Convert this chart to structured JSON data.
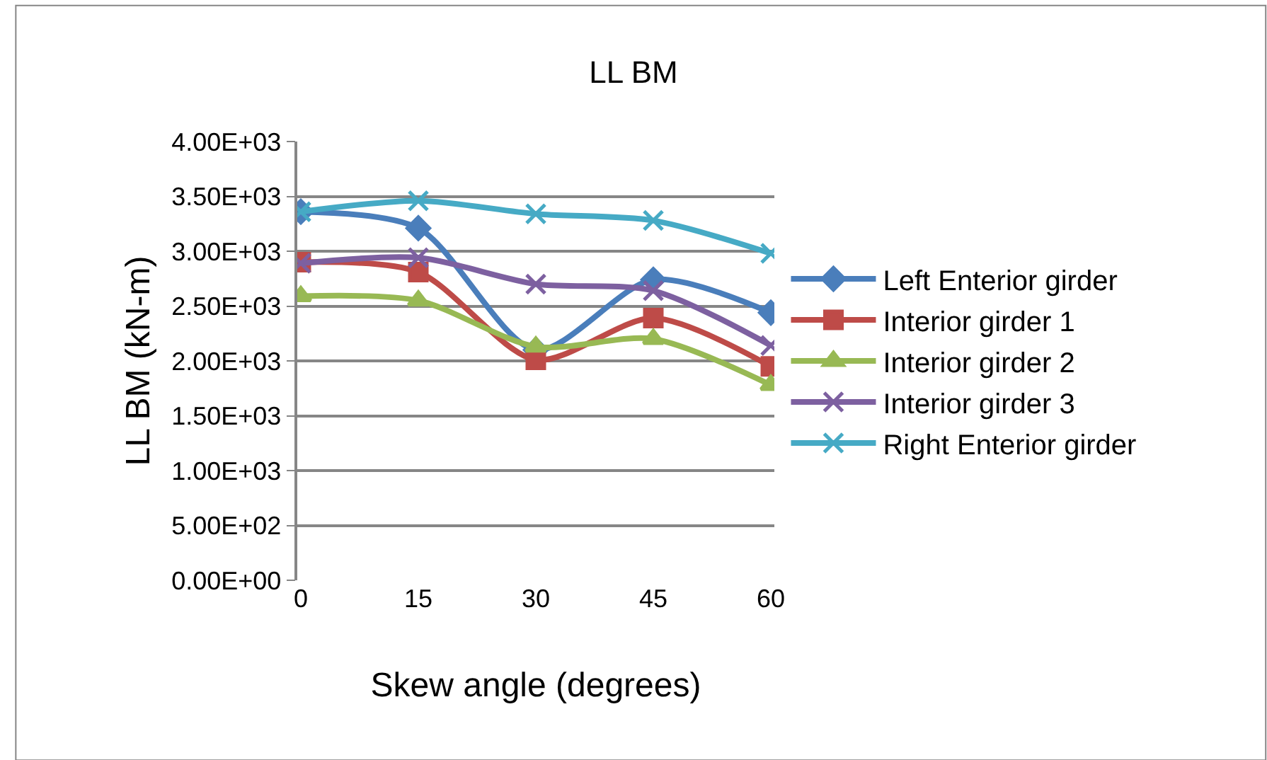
{
  "chart_data": {
    "type": "line",
    "title": "LL BM",
    "xlabel": "Skew angle (degrees)",
    "ylabel": "LL BM (kN-m)",
    "categories": [
      "0",
      "15",
      "30",
      "45",
      "60"
    ],
    "series": [
      {
        "name": "Left Enterior girder",
        "color": "#4a7ebb",
        "marker": "diamond",
        "values": [
          3360,
          3210,
          2100,
          2740,
          2440
        ]
      },
      {
        "name": "Interior girder 1",
        "color": "#be4b48",
        "marker": "square",
        "values": [
          2900,
          2810,
          2010,
          2390,
          1950
        ]
      },
      {
        "name": "Interior girder 2",
        "color": "#98b954",
        "marker": "triangle",
        "values": [
          2590,
          2550,
          2130,
          2200,
          1780
        ]
      },
      {
        "name": "Interior girder 3",
        "color": "#7d60a0",
        "marker": "cross",
        "values": [
          2890,
          2940,
          2700,
          2640,
          2140
        ]
      },
      {
        "name": "Right Enterior girder",
        "color": "#46aac5",
        "marker": "cross",
        "values": [
          3360,
          3460,
          3340,
          3280,
          2980
        ]
      }
    ],
    "ylim": [
      0,
      4000
    ],
    "yticks": [
      {
        "value": 0,
        "label": "0.00E+00"
      },
      {
        "value": 500,
        "label": "5.00E+02"
      },
      {
        "value": 1000,
        "label": "1.00E+03"
      },
      {
        "value": 1500,
        "label": "1.50E+03"
      },
      {
        "value": 2000,
        "label": "2.00E+03"
      },
      {
        "value": 2500,
        "label": "2.50E+03"
      },
      {
        "value": 3000,
        "label": "3.00E+03"
      },
      {
        "value": 3500,
        "label": "3.50E+03"
      },
      {
        "value": 4000,
        "label": "4.00E+03"
      }
    ],
    "grid": "y",
    "legend": "right",
    "line_style": "solid"
  }
}
